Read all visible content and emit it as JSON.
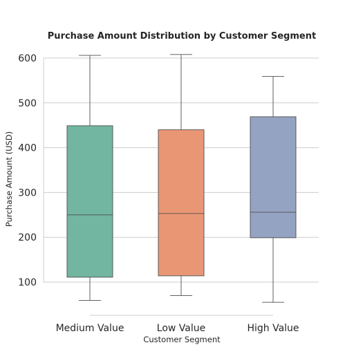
{
  "chart_data": {
    "type": "box",
    "title": "Purchase Amount Distribution by Customer Segment",
    "xlabel": "Customer Segment",
    "ylabel": "Purchase Amount (USD)",
    "ylim": [
      70,
      600
    ],
    "yticks": [
      100,
      200,
      300,
      400,
      500,
      600
    ],
    "grid": true,
    "categories": [
      "Medium Value",
      "Low Value",
      "High Value"
    ],
    "boxes": [
      {
        "category": "Medium Value",
        "min": 59,
        "q1": 111,
        "median": 250,
        "q3": 449,
        "max": 606,
        "color": "#72b6a1"
      },
      {
        "category": "Low Value",
        "min": 70,
        "q1": 114,
        "median": 253,
        "q3": 440,
        "max": 608,
        "color": "#e99675"
      },
      {
        "category": "High Value",
        "min": 55,
        "q1": 199,
        "median": 256,
        "q3": 469,
        "max": 559,
        "color": "#95a3c3"
      }
    ]
  }
}
